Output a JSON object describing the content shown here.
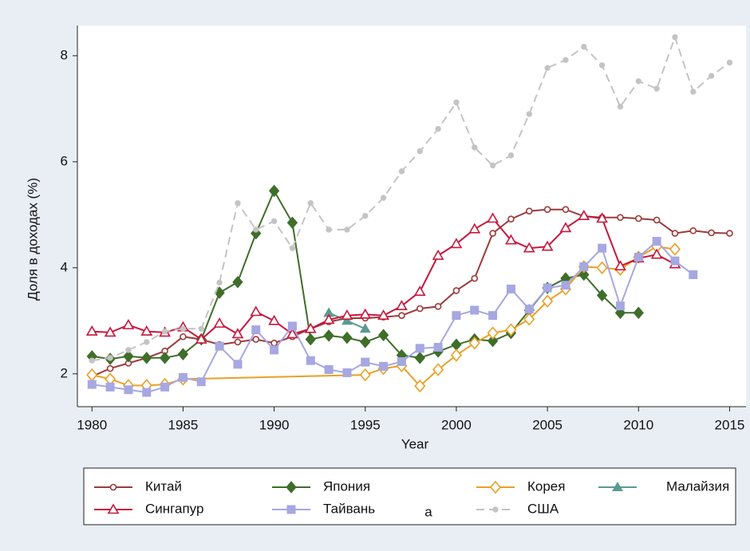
{
  "chart_data": {
    "type": "line",
    "ylabel": "Доля в доходах (%)",
    "xlabel": "Year",
    "xlim": [
      1979.2,
      2015.9
    ],
    "xticks": [
      1980,
      1985,
      1990,
      1995,
      2000,
      2005,
      2010,
      2015
    ],
    "ylim": [
      1.38,
      8.57
    ],
    "yticks": [
      2,
      4,
      6,
      8
    ],
    "legend_note": "a",
    "series": [
      {
        "name": "Китай",
        "color": "#9b3a3a",
        "marker": "circle-hollow",
        "x": [
          1980,
          1981,
          1982,
          1983,
          1984,
          1985,
          1986,
          1987,
          1988,
          1989,
          1990,
          1991,
          1992,
          1993,
          1994,
          1995,
          1996,
          1997,
          1998,
          1999,
          2000,
          2001,
          2002,
          2003,
          2004,
          2005,
          2006,
          2007,
          2008,
          2009,
          2010,
          2011,
          2012,
          2013,
          2014,
          2015
        ],
        "values": [
          1.95,
          2.1,
          2.2,
          2.3,
          2.43,
          2.7,
          2.65,
          2.55,
          2.6,
          2.65,
          2.58,
          2.7,
          2.85,
          2.98,
          3.05,
          3.05,
          3.07,
          3.1,
          3.23,
          3.27,
          3.57,
          3.8,
          4.65,
          4.92,
          5.07,
          5.1,
          5.1,
          4.97,
          4.95,
          4.95,
          4.93,
          4.9,
          4.65,
          4.7,
          4.66,
          4.65
        ]
      },
      {
        "name": "Япония",
        "color": "#3f6e2a",
        "marker": "diamond",
        "x": [
          1980,
          1981,
          1982,
          1983,
          1984,
          1985,
          1986,
          1987,
          1988,
          1989,
          1990,
          1991,
          1992,
          1993,
          1994,
          1995,
          1996,
          1997,
          1998,
          1999,
          2000,
          2001,
          2002,
          2003,
          2004,
          2005,
          2006,
          2007,
          2008,
          2009,
          2010
        ],
        "values": [
          2.33,
          2.28,
          2.33,
          2.3,
          2.3,
          2.37,
          2.65,
          3.53,
          3.73,
          4.65,
          5.45,
          4.85,
          2.65,
          2.72,
          2.68,
          2.6,
          2.73,
          2.35,
          2.3,
          2.42,
          2.55,
          2.65,
          2.62,
          2.77,
          3.2,
          3.62,
          3.8,
          3.87,
          3.48,
          3.15,
          3.15
        ]
      },
      {
        "name": "Корея",
        "color": "#e9a025",
        "marker": "diamond-hollow",
        "x": [
          1980,
          1981,
          1982,
          1983,
          1984,
          1985,
          1995,
          1996,
          1997,
          1998,
          1999,
          2000,
          2001,
          2002,
          2003,
          2004,
          2005,
          2006,
          2007,
          2008,
          2009,
          2010,
          2011,
          2012
        ],
        "values": [
          1.98,
          1.9,
          1.78,
          1.78,
          1.8,
          1.9,
          1.98,
          2.1,
          2.15,
          1.77,
          2.08,
          2.35,
          2.58,
          2.77,
          2.83,
          3.03,
          3.37,
          3.6,
          4.02,
          4.0,
          3.97,
          4.2,
          4.4,
          4.35
        ]
      },
      {
        "name": "Малайзия",
        "color": "#5a9a90",
        "marker": "triangle",
        "x": [
          1993,
          1994,
          1995
        ],
        "values": [
          3.15,
          3.0,
          2.85
        ]
      },
      {
        "name": "Сингапур",
        "color": "#c8163c",
        "marker": "triangle-hollow",
        "x": [
          1980,
          1981,
          1982,
          1983,
          1984,
          1985,
          1986,
          1987,
          1988,
          1989,
          1990,
          1991,
          1992,
          1993,
          1994,
          1995,
          1996,
          1997,
          1998,
          1999,
          2000,
          2001,
          2002,
          2003,
          2004,
          2005,
          2006,
          2007,
          2008,
          2009,
          2010,
          2011,
          2012
        ],
        "values": [
          2.8,
          2.78,
          2.92,
          2.8,
          2.78,
          2.88,
          2.65,
          2.95,
          2.75,
          3.17,
          3.0,
          2.75,
          2.85,
          3.02,
          3.1,
          3.12,
          3.1,
          3.28,
          3.55,
          4.23,
          4.45,
          4.73,
          4.93,
          4.52,
          4.37,
          4.4,
          4.75,
          4.98,
          4.93,
          4.03,
          4.18,
          4.25,
          4.07
        ]
      },
      {
        "name": "Тайвань",
        "color": "#a7a7e2",
        "marker": "square",
        "x": [
          1980,
          1981,
          1982,
          1983,
          1984,
          1985,
          1986,
          1987,
          1988,
          1989,
          1990,
          1991,
          1992,
          1993,
          1994,
          1995,
          1996,
          1997,
          1998,
          1999,
          2000,
          2001,
          2002,
          2003,
          2004,
          2005,
          2006,
          2007,
          2008,
          2009,
          2010,
          2011,
          2012,
          2013
        ],
        "values": [
          1.8,
          1.75,
          1.7,
          1.65,
          1.75,
          1.93,
          1.85,
          2.52,
          2.18,
          2.83,
          2.45,
          2.9,
          2.25,
          2.08,
          2.02,
          2.22,
          2.14,
          2.23,
          2.48,
          2.5,
          3.1,
          3.2,
          3.1,
          3.6,
          3.22,
          3.62,
          3.67,
          4.02,
          4.37,
          3.28,
          4.2,
          4.5,
          4.13,
          3.87
        ]
      },
      {
        "name": "США",
        "color": "#c4c4c4",
        "marker": "circle",
        "dashed": true,
        "x": [
          1980,
          1981,
          1982,
          1983,
          1984,
          1985,
          1986,
          1987,
          1988,
          1989,
          1990,
          1991,
          1992,
          1993,
          1994,
          1995,
          1996,
          1997,
          1998,
          1999,
          2000,
          2001,
          2002,
          2003,
          2004,
          2005,
          2006,
          2007,
          2008,
          2009,
          2010,
          2011,
          2012,
          2013,
          2014,
          2015
        ],
        "values": [
          2.25,
          2.3,
          2.45,
          2.6,
          2.8,
          2.85,
          2.85,
          3.72,
          5.22,
          4.72,
          4.88,
          4.37,
          5.22,
          4.72,
          4.72,
          4.98,
          5.32,
          5.82,
          6.2,
          6.62,
          7.12,
          6.27,
          5.93,
          6.12,
          6.9,
          7.77,
          7.92,
          8.17,
          7.82,
          7.04,
          7.52,
          7.38,
          8.35,
          7.32,
          7.62,
          7.87
        ]
      }
    ]
  }
}
